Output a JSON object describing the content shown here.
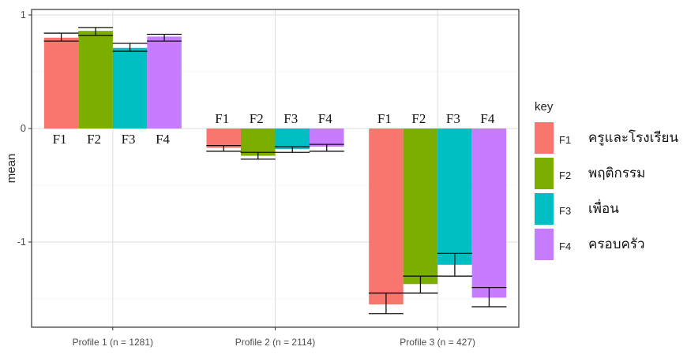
{
  "chart_data": {
    "type": "bar",
    "ylabel": "mean",
    "xlabel": "",
    "ylim": [
      -1.75,
      1.0
    ],
    "yticks": [
      1,
      0,
      -1
    ],
    "ytick_labels": [
      "1",
      "0",
      "-1"
    ],
    "grid": true,
    "legend_position": "right",
    "legend_title": "key",
    "categories": [
      "Profile 1 (n = 1281)",
      "Profile 2 (n = 2114)",
      "Profile 3 (n = 427)"
    ],
    "series": [
      {
        "name": "F1",
        "description": "ครูและโรงเรียน",
        "color": "#F8766D",
        "values": [
          0.8,
          -0.17,
          -1.55
        ],
        "err_low": [
          0.77,
          -0.2,
          -1.63
        ],
        "err_high": [
          0.84,
          -0.15,
          -1.45
        ]
      },
      {
        "name": "F2",
        "description": "พฤติกรรม",
        "color": "#7CAE00",
        "values": [
          0.86,
          -0.24,
          -1.37
        ],
        "err_low": [
          0.82,
          -0.27,
          -1.45
        ],
        "err_high": [
          0.89,
          -0.21,
          -1.3
        ]
      },
      {
        "name": "F3",
        "description": "เพื่อน",
        "color": "#00BFC4",
        "values": [
          0.71,
          -0.18,
          -1.2
        ],
        "err_low": [
          0.68,
          -0.21,
          -1.3
        ],
        "err_high": [
          0.75,
          -0.16,
          -1.1
        ]
      },
      {
        "name": "F4",
        "description": "ครอบครัว",
        "color": "#C77CFF",
        "values": [
          0.81,
          -0.16,
          -1.49
        ],
        "err_low": [
          0.77,
          -0.2,
          -1.57
        ],
        "err_high": [
          0.83,
          -0.14,
          -1.4
        ]
      }
    ],
    "bar_labels": [
      "F1",
      "F2",
      "F3",
      "F4"
    ]
  }
}
